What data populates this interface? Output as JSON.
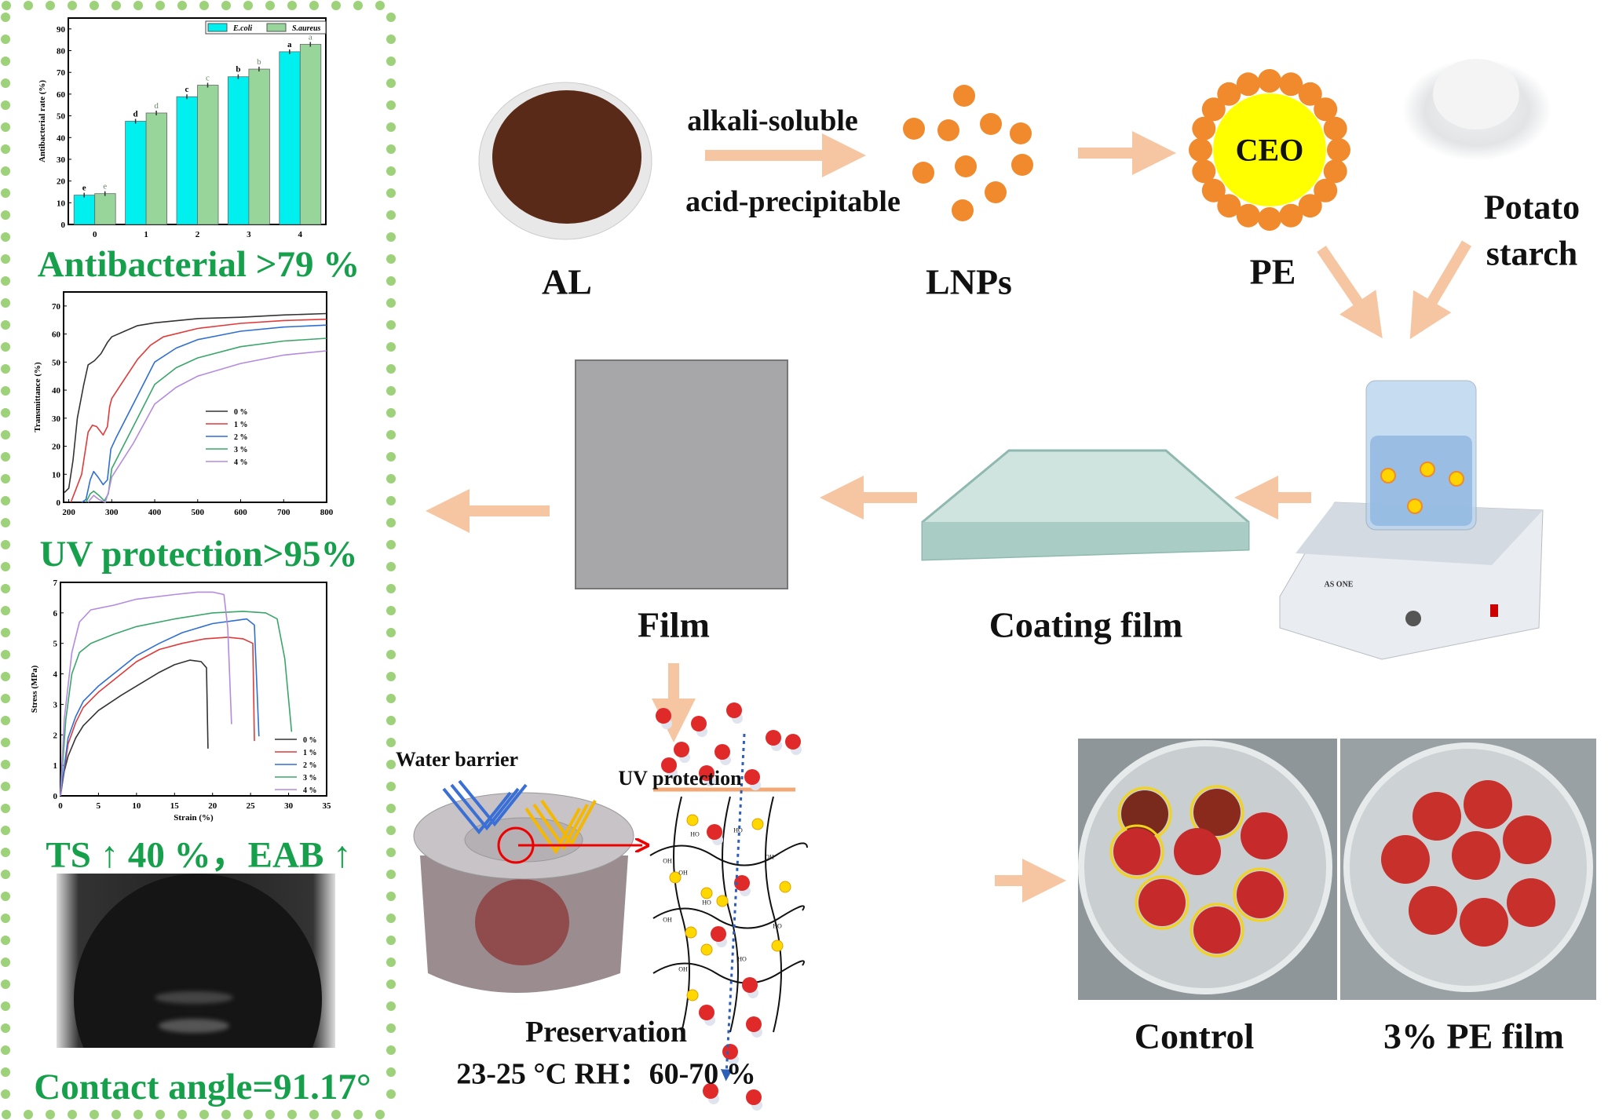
{
  "left_panel": {
    "headline_antibacterial": "Antibacterial >79 %",
    "headline_uv": "UV protection>95%",
    "headline_mechanical": "TS ↑ 40 %，EAB ↑",
    "headline_contact_angle": "Contact angle=91.17°",
    "border_color": "#9dd27a",
    "headline_color": "#16a04c"
  },
  "chart_data": [
    {
      "type": "bar",
      "title": "",
      "xlabel": "",
      "ylabel": "Antibacterial rate (%)",
      "categories": [
        "0",
        "1",
        "2",
        "3",
        "4"
      ],
      "ylim": [
        0,
        95
      ],
      "yticks": [
        0,
        10,
        20,
        30,
        40,
        50,
        60,
        70,
        80,
        90
      ],
      "legend_position": "top-right",
      "series": [
        {
          "name": "E.coli",
          "color": "#00f0f0",
          "values": [
            13.5,
            47.5,
            58.8,
            68.0,
            79.5
          ],
          "letters": [
            "e",
            "d",
            "c",
            "b",
            "a"
          ]
        },
        {
          "name": "S.aureus",
          "color": "#98d59a",
          "values": [
            14.2,
            51.3,
            64.1,
            71.5,
            82.9
          ],
          "letters": [
            "e",
            "d",
            "c",
            "b",
            "a"
          ]
        }
      ]
    },
    {
      "type": "line",
      "title": "",
      "xlabel": "",
      "ylabel": "Transmittance (%)",
      "xlim": [
        188,
        800
      ],
      "ylim": [
        0,
        75
      ],
      "xticks": [
        200,
        300,
        400,
        500,
        600,
        700,
        800
      ],
      "yticks": [
        0,
        10,
        20,
        30,
        40,
        50,
        60,
        70
      ],
      "legend_position": "center-right",
      "series": [
        {
          "name": "0 %",
          "color": "#333333",
          "points": [
            [
              190,
              3.5
            ],
            [
              200,
              5
            ],
            [
              210,
              15
            ],
            [
              220,
              30
            ],
            [
              235,
              42
            ],
            [
              245,
              49
            ],
            [
              260,
              50.5
            ],
            [
              275,
              53
            ],
            [
              290,
              57
            ],
            [
              300,
              59
            ],
            [
              330,
              61
            ],
            [
              360,
              63
            ],
            [
              400,
              64
            ],
            [
              500,
              65.5
            ],
            [
              600,
              66
            ],
            [
              700,
              66.8
            ],
            [
              800,
              67.3
            ]
          ]
        },
        {
          "name": "1 %",
          "color": "#e03a3a",
          "points": [
            [
              205,
              0
            ],
            [
              215,
              4
            ],
            [
              230,
              10
            ],
            [
              245,
              25
            ],
            [
              255,
              27.5
            ],
            [
              265,
              27
            ],
            [
              280,
              24
            ],
            [
              290,
              27
            ],
            [
              295,
              34
            ],
            [
              300,
              37
            ],
            [
              330,
              44
            ],
            [
              360,
              51
            ],
            [
              390,
              56
            ],
            [
              420,
              59
            ],
            [
              500,
              62
            ],
            [
              600,
              63.8
            ],
            [
              700,
              64.8
            ],
            [
              800,
              65.3
            ]
          ]
        },
        {
          "name": "2 %",
          "color": "#2f6fd0",
          "points": [
            [
              230,
              0
            ],
            [
              240,
              1
            ],
            [
              250,
              8
            ],
            [
              258,
              11
            ],
            [
              268,
              9
            ],
            [
              280,
              6.3
            ],
            [
              290,
              8
            ],
            [
              298,
              19
            ],
            [
              310,
              23
            ],
            [
              350,
              35
            ],
            [
              400,
              50
            ],
            [
              450,
              55
            ],
            [
              500,
              58
            ],
            [
              600,
              61
            ],
            [
              700,
              62.5
            ],
            [
              800,
              63.2
            ]
          ]
        },
        {
          "name": "3 %",
          "color": "#3aa66a",
          "points": [
            [
              240,
              0
            ],
            [
              250,
              3
            ],
            [
              258,
              4
            ],
            [
              270,
              2.5
            ],
            [
              283,
              0.5
            ],
            [
              292,
              3
            ],
            [
              300,
              12
            ],
            [
              350,
              27
            ],
            [
              400,
              42
            ],
            [
              450,
              48
            ],
            [
              500,
              51.5
            ],
            [
              600,
              55.5
            ],
            [
              700,
              57.5
            ],
            [
              800,
              58.5
            ]
          ]
        },
        {
          "name": "4 %",
          "color": "#b48ae0",
          "points": [
            [
              245,
              0
            ],
            [
              258,
              2.5
            ],
            [
              270,
              1
            ],
            [
              285,
              0
            ],
            [
              293,
              4
            ],
            [
              300,
              9
            ],
            [
              350,
              21
            ],
            [
              400,
              35
            ],
            [
              450,
              41
            ],
            [
              500,
              45
            ],
            [
              600,
              49.5
            ],
            [
              700,
              52.5
            ],
            [
              800,
              54
            ]
          ]
        }
      ]
    },
    {
      "type": "line",
      "title": "",
      "xlabel": "Strain (%)",
      "ylabel": "Stress (MPa)",
      "xlim": [
        0,
        35
      ],
      "ylim": [
        0,
        7
      ],
      "xticks": [
        0,
        5,
        10,
        15,
        20,
        25,
        30,
        35
      ],
      "yticks": [
        0,
        1,
        2,
        3,
        4,
        5,
        6,
        7
      ],
      "legend_position": "bottom-right",
      "series": [
        {
          "name": "0 %",
          "color": "#333333",
          "points": [
            [
              0,
              0
            ],
            [
              0.5,
              0.8
            ],
            [
              1,
              1.3
            ],
            [
              2,
              1.9
            ],
            [
              3,
              2.3
            ],
            [
              5,
              2.8
            ],
            [
              8,
              3.3
            ],
            [
              10,
              3.6
            ],
            [
              13,
              4.05
            ],
            [
              15,
              4.3
            ],
            [
              17,
              4.45
            ],
            [
              18.5,
              4.4
            ],
            [
              19.2,
              4.2
            ],
            [
              19.4,
              1.55
            ]
          ]
        },
        {
          "name": "1 %",
          "color": "#e03a3a",
          "points": [
            [
              0,
              0
            ],
            [
              1,
              1.7
            ],
            [
              2,
              2.4
            ],
            [
              3,
              2.9
            ],
            [
              5,
              3.4
            ],
            [
              8,
              4.0
            ],
            [
              10,
              4.4
            ],
            [
              13,
              4.8
            ],
            [
              16,
              5.0
            ],
            [
              19,
              5.15
            ],
            [
              22,
              5.2
            ],
            [
              24,
              5.15
            ],
            [
              25.3,
              5.0
            ],
            [
              25.5,
              1.8
            ]
          ]
        },
        {
          "name": "2 %",
          "color": "#2f6fd0",
          "points": [
            [
              0,
              0
            ],
            [
              1,
              1.9
            ],
            [
              2,
              2.6
            ],
            [
              3,
              3.1
            ],
            [
              5,
              3.6
            ],
            [
              8,
              4.2
            ],
            [
              10,
              4.6
            ],
            [
              13,
              5.0
            ],
            [
              16,
              5.35
            ],
            [
              20,
              5.65
            ],
            [
              23,
              5.75
            ],
            [
              24.5,
              5.8
            ],
            [
              25.5,
              5.6
            ],
            [
              26.1,
              1.95
            ]
          ]
        },
        {
          "name": "3 %",
          "color": "#3aa66a",
          "points": [
            [
              0,
              0
            ],
            [
              0.7,
              2.5
            ],
            [
              1.5,
              4.0
            ],
            [
              2.5,
              4.7
            ],
            [
              4,
              5.0
            ],
            [
              7,
              5.3
            ],
            [
              10,
              5.55
            ],
            [
              15,
              5.8
            ],
            [
              20,
              6.0
            ],
            [
              24,
              6.05
            ],
            [
              27,
              6.0
            ],
            [
              28.5,
              5.8
            ],
            [
              29.5,
              4.5
            ],
            [
              30.4,
              2.1
            ]
          ]
        },
        {
          "name": "4 %",
          "color": "#b48ae0",
          "points": [
            [
              0,
              0
            ],
            [
              0.5,
              2.5
            ],
            [
              1.5,
              4.7
            ],
            [
              2.5,
              5.7
            ],
            [
              4,
              6.1
            ],
            [
              7,
              6.25
            ],
            [
              10,
              6.45
            ],
            [
              15,
              6.6
            ],
            [
              18,
              6.68
            ],
            [
              20,
              6.68
            ],
            [
              21.5,
              6.6
            ],
            [
              22,
              5.5
            ],
            [
              22.5,
              2.35
            ]
          ]
        }
      ]
    }
  ],
  "flow": {
    "al_label": "AL",
    "process_top": "alkali-soluble",
    "process_bottom": "acid-precipitable",
    "lnps_label": "LNPs",
    "ceo_label": "CEO",
    "pe_label": "PE",
    "starch_label_1": "Potato",
    "starch_label_2": "starch",
    "coating_label": "Coating film",
    "film_label": "Film",
    "water_barrier_label": "Water  barrier",
    "uv_label": "UV protection",
    "preservation_label": "Preservation",
    "conditions_label": "23-25 °C RH：60-70 %",
    "control_label": "Control",
    "pe_film_label": "3% PE film",
    "stirrer_brand": "AS ONE",
    "oh_label": "OH",
    "ho_label": "HO",
    "arrow_color": "#f6c6a2",
    "particle_color": "#f08a2c",
    "ceo_color": "#ffff00"
  }
}
